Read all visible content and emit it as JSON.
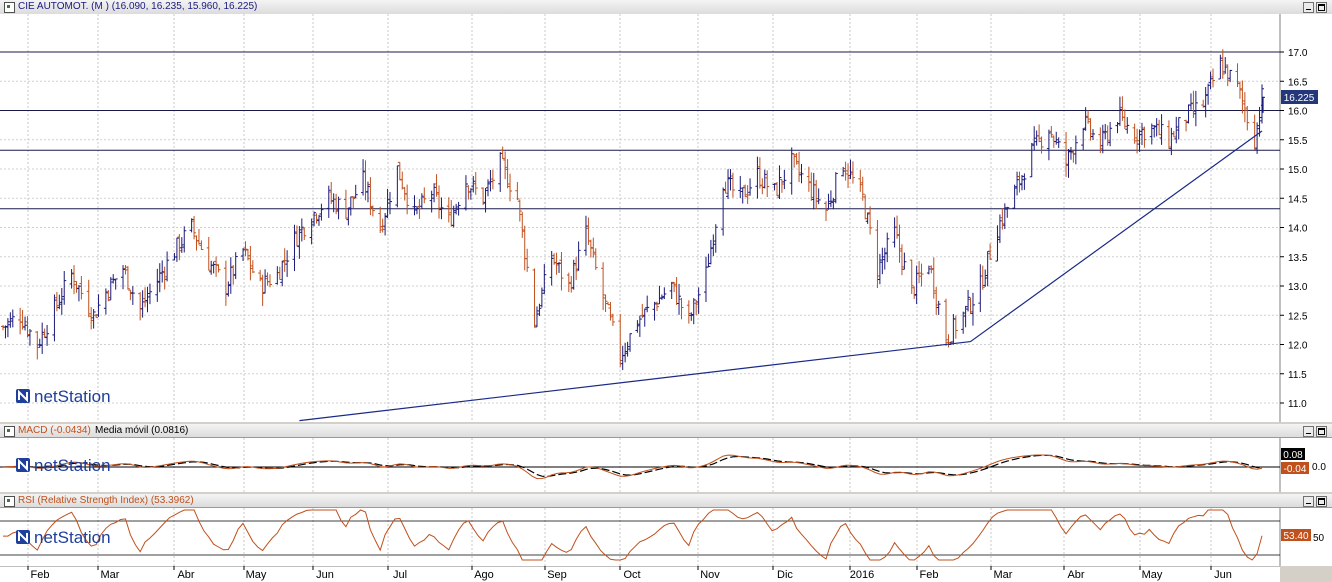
{
  "main": {
    "title": "CIE AUTOMOT. (M ) (16.090, 16.235, 15.960, 16.225)",
    "last_value_label": "16.225",
    "logo_text": "netStation"
  },
  "macd": {
    "title": "MACD (-0.0434)",
    "ma_title": "Media móvil (0.0816)",
    "badge_signal": "0.08",
    "badge_macd": "-0.04",
    "zero_label": "0.0",
    "logo_text": "netStation"
  },
  "rsi": {
    "title": "RSI (Relative Strength Index) (53.3962)",
    "badge_value": "53.40",
    "level_label": "50",
    "logo_text": "netStation"
  },
  "x_axis": {
    "months": [
      "Feb",
      "Mar",
      "Abr",
      "May",
      "Jun",
      "Jul",
      "Ago",
      "Sep",
      "Oct",
      "Nov",
      "Dic",
      "2016",
      "Feb",
      "Mar",
      "Abr",
      "May",
      "Jun"
    ]
  },
  "colors": {
    "up": "#1a1a7a",
    "down": "#c0501c",
    "trend": "#1a2a88",
    "macd_line": "#c0501c",
    "signal_line": "#000000",
    "badge_blue": "#24377a",
    "badge_black": "#000000",
    "badge_orange": "#c0501c"
  },
  "chart_data": [
    {
      "type": "ohlc",
      "title": "CIE AUTOMOT. (M ) (16.090, 16.235, 15.960, 16.225)",
      "x_range": [
        "2015-01-19",
        "2016-06-16"
      ],
      "ylim": [
        10.7,
        17.6
      ],
      "y_ticks": [
        11.0,
        11.5,
        12.0,
        12.5,
        13.0,
        13.5,
        14.0,
        14.5,
        15.0,
        15.5,
        16.0,
        16.5,
        17.0
      ],
      "last": {
        "open": 16.09,
        "high": 16.235,
        "low": 15.96,
        "close": 16.225
      },
      "horizontal_levels": [
        17.0,
        16.0,
        15.32,
        14.32
      ],
      "trendline": {
        "x": [
          "2015-05-20",
          "2016-02-18",
          "2016-06-16"
        ],
        "y": [
          10.7,
          12.05,
          15.65
        ]
      },
      "close_path": {
        "x": [
          "2015-01-19",
          "2015-01-26",
          "2015-02-02",
          "2015-02-09",
          "2015-02-16",
          "2015-02-25",
          "2015-03-02",
          "2015-03-09",
          "2015-03-16",
          "2015-03-23",
          "2015-03-30",
          "2015-04-06",
          "2015-04-13",
          "2015-04-20",
          "2015-04-27",
          "2015-05-04",
          "2015-05-11",
          "2015-05-18",
          "2015-05-25",
          "2015-06-01",
          "2015-06-08",
          "2015-06-15",
          "2015-06-22",
          "2015-06-29",
          "2015-07-06",
          "2015-07-13",
          "2015-07-20",
          "2015-07-27",
          "2015-08-03",
          "2015-08-10",
          "2015-08-17",
          "2015-08-24",
          "2015-08-31",
          "2015-09-07",
          "2015-09-14",
          "2015-09-21",
          "2015-09-28",
          "2015-10-05",
          "2015-10-12",
          "2015-10-19",
          "2015-10-26",
          "2015-11-02",
          "2015-11-09",
          "2015-11-16",
          "2015-11-23",
          "2015-11-30",
          "2015-12-07",
          "2015-12-14",
          "2015-12-21",
          "2015-12-28",
          "2016-01-05",
          "2016-01-11",
          "2016-01-18",
          "2016-01-25",
          "2016-02-01",
          "2016-02-08",
          "2016-02-15",
          "2016-02-22",
          "2016-02-29",
          "2016-03-07",
          "2016-03-14",
          "2016-03-21",
          "2016-03-28",
          "2016-04-04",
          "2016-04-11",
          "2016-04-18",
          "2016-04-25",
          "2016-05-02",
          "2016-05-09",
          "2016-05-16",
          "2016-05-23",
          "2016-05-30",
          "2016-06-06",
          "2016-06-13",
          "2016-06-16"
        ],
        "y": [
          12.3,
          12.5,
          12.0,
          12.6,
          13.2,
          12.5,
          12.9,
          13.3,
          12.6,
          13.1,
          13.6,
          14.0,
          13.4,
          13.0,
          13.6,
          13.0,
          13.2,
          13.8,
          14.2,
          14.5,
          14.3,
          14.8,
          14.0,
          15.0,
          14.2,
          14.6,
          14.1,
          14.8,
          14.5,
          15.1,
          14.5,
          12.4,
          13.5,
          13.0,
          13.9,
          12.8,
          11.8,
          12.4,
          12.7,
          13.0,
          12.4,
          13.2,
          14.8,
          14.5,
          14.9,
          14.6,
          15.1,
          14.7,
          14.3,
          15.1,
          14.5,
          13.3,
          13.9,
          12.9,
          13.4,
          12.1,
          12.5,
          13.0,
          14.0,
          14.6,
          15.3,
          15.7,
          15.1,
          15.8,
          15.4,
          15.9,
          15.6,
          15.7,
          15.5,
          15.9,
          16.1,
          16.8,
          16.4,
          15.5,
          16.225
        ]
      }
    },
    {
      "type": "line",
      "title": "MACD (-0.0434)",
      "series": [
        {
          "name": "MACD (-0.0434)",
          "last": -0.0434
        },
        {
          "name": "Media móvil (0.0816)",
          "last": 0.0816
        }
      ],
      "y_ticks": [
        0.0
      ]
    },
    {
      "type": "line",
      "title": "RSI (Relative Strength Index) (53.3962)",
      "series": [
        {
          "name": "RSI (Relative Strength Index) (53.3962)",
          "last": 53.3962
        }
      ],
      "y_ticks": [
        50
      ]
    }
  ]
}
